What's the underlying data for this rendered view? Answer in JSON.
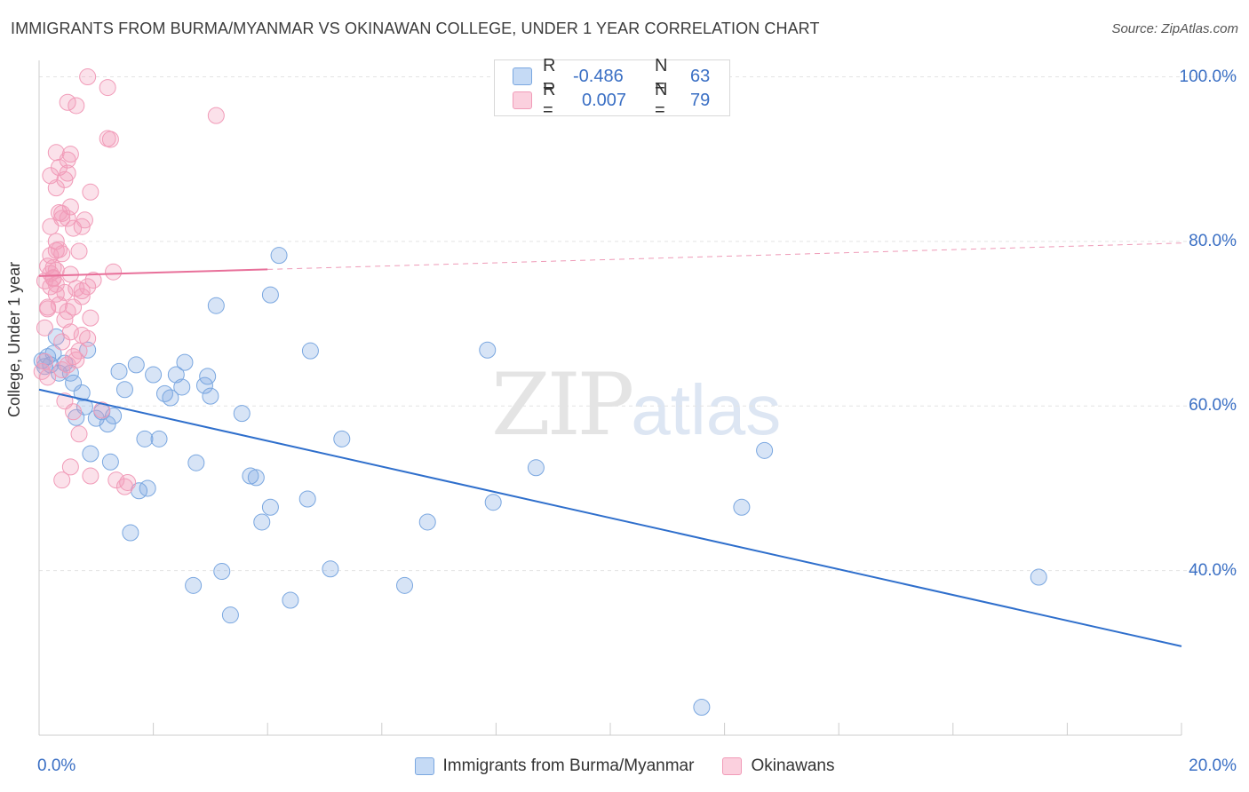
{
  "title": "IMMIGRANTS FROM BURMA/MYANMAR VS OKINAWAN COLLEGE, UNDER 1 YEAR CORRELATION CHART",
  "source": "Source: ZipAtlas.com",
  "watermark": {
    "zip": "ZIP",
    "atlas": "atlas"
  },
  "legend_top": {
    "rows": [
      {
        "r_label": "R =",
        "r_value": "-0.486",
        "n_label": "N =",
        "n_value": "63"
      },
      {
        "r_label": "R =",
        "r_value": "0.007",
        "n_label": "N =",
        "n_value": "79"
      }
    ]
  },
  "colors": {
    "blue": "#7aa7e0",
    "blue_line": "#2f6fcc",
    "pink": "#f19bb8",
    "pink_line": "#e8709a",
    "axis_text": "#3a6fc4",
    "grid": "#e3e3e3"
  },
  "chart_data": {
    "type": "scatter",
    "title": "IMMIGRANTS FROM BURMA/MYANMAR VS OKINAWAN COLLEGE, UNDER 1 YEAR CORRELATION CHART",
    "xlabel": "",
    "ylabel": "College, Under 1 year",
    "xlim": [
      0,
      20
    ],
    "ylim": [
      20,
      102
    ],
    "x_tick_labels": [
      "0.0%",
      "20.0%"
    ],
    "y_ticks": [
      40,
      60,
      80,
      100
    ],
    "y_tick_labels": [
      "40.0%",
      "60.0%",
      "80.0%",
      "100.0%"
    ],
    "grid": true,
    "legend_position": "bottom-center",
    "series": [
      {
        "name": "Immigrants from Burma/Myanmar",
        "R": -0.486,
        "N": 63,
        "trend": {
          "x": [
            0,
            20
          ],
          "y": [
            62.0,
            30.8
          ]
        },
        "points": [
          [
            0.05,
            65.5
          ],
          [
            0.15,
            66.0
          ],
          [
            0.2,
            65.0
          ],
          [
            0.25,
            66.4
          ],
          [
            0.3,
            68.4
          ],
          [
            0.35,
            64.0
          ],
          [
            0.45,
            65.2
          ],
          [
            0.55,
            64.0
          ],
          [
            0.6,
            62.8
          ],
          [
            0.65,
            58.6
          ],
          [
            0.75,
            61.6
          ],
          [
            0.8,
            59.9
          ],
          [
            0.85,
            66.8
          ],
          [
            0.9,
            54.2
          ],
          [
            1.0,
            58.5
          ],
          [
            1.1,
            59.3
          ],
          [
            1.2,
            57.8
          ],
          [
            1.3,
            58.8
          ],
          [
            1.25,
            53.2
          ],
          [
            1.4,
            64.2
          ],
          [
            1.5,
            62.0
          ],
          [
            1.6,
            44.6
          ],
          [
            1.7,
            65.0
          ],
          [
            1.75,
            49.7
          ],
          [
            1.85,
            56.0
          ],
          [
            1.9,
            50.0
          ],
          [
            2.0,
            63.8
          ],
          [
            2.1,
            56.0
          ],
          [
            2.2,
            61.5
          ],
          [
            2.3,
            61.0
          ],
          [
            2.4,
            63.8
          ],
          [
            2.5,
            62.3
          ],
          [
            2.55,
            65.3
          ],
          [
            2.7,
            38.2
          ],
          [
            2.75,
            53.1
          ],
          [
            2.9,
            62.5
          ],
          [
            2.95,
            63.6
          ],
          [
            3.0,
            61.2
          ],
          [
            3.1,
            72.2
          ],
          [
            3.2,
            39.9
          ],
          [
            3.35,
            34.6
          ],
          [
            3.7,
            51.5
          ],
          [
            3.8,
            51.3
          ],
          [
            3.9,
            45.9
          ],
          [
            4.05,
            47.7
          ],
          [
            4.2,
            78.3
          ],
          [
            4.4,
            36.4
          ],
          [
            4.7,
            48.7
          ],
          [
            4.75,
            66.7
          ],
          [
            3.55,
            59.1
          ],
          [
            5.1,
            40.2
          ],
          [
            5.3,
            56.0
          ],
          [
            4.05,
            73.5
          ],
          [
            6.4,
            38.2
          ],
          [
            6.8,
            45.9
          ],
          [
            7.85,
            66.8
          ],
          [
            7.95,
            48.3
          ],
          [
            8.7,
            52.5
          ],
          [
            12.3,
            47.7
          ],
          [
            12.7,
            54.6
          ],
          [
            17.5,
            39.2
          ],
          [
            11.6,
            23.4
          ],
          [
            0.1,
            64.8
          ]
        ]
      },
      {
        "name": "Okinawans",
        "R": 0.007,
        "N": 79,
        "trend": {
          "x": [
            0,
            20
          ],
          "y": [
            75.8,
            79.8
          ],
          "solid_until_x": 4.0
        },
        "points": [
          [
            0.05,
            64.2
          ],
          [
            0.1,
            69.5
          ],
          [
            0.15,
            71.8
          ],
          [
            0.2,
            74.5
          ],
          [
            0.1,
            75.2
          ],
          [
            0.15,
            77.0
          ],
          [
            0.2,
            78.3
          ],
          [
            0.25,
            75.5
          ],
          [
            0.3,
            76.5
          ],
          [
            0.3,
            80.0
          ],
          [
            0.2,
            81.8
          ],
          [
            0.35,
            83.5
          ],
          [
            0.4,
            82.8
          ],
          [
            0.3,
            86.5
          ],
          [
            0.2,
            88.0
          ],
          [
            0.35,
            89.0
          ],
          [
            0.45,
            87.5
          ],
          [
            0.5,
            88.3
          ],
          [
            0.3,
            90.8
          ],
          [
            0.5,
            89.9
          ],
          [
            0.55,
            90.6
          ],
          [
            0.5,
            96.9
          ],
          [
            0.65,
            96.5
          ],
          [
            0.85,
            100.0
          ],
          [
            1.2,
            98.7
          ],
          [
            1.2,
            92.5
          ],
          [
            1.25,
            92.4
          ],
          [
            3.1,
            95.3
          ],
          [
            0.9,
            86.0
          ],
          [
            0.8,
            82.6
          ],
          [
            0.75,
            81.8
          ],
          [
            0.6,
            81.6
          ],
          [
            0.55,
            84.2
          ],
          [
            0.5,
            82.8
          ],
          [
            0.4,
            83.4
          ],
          [
            0.7,
            78.8
          ],
          [
            0.55,
            76.0
          ],
          [
            0.65,
            74.3
          ],
          [
            0.75,
            74.0
          ],
          [
            0.75,
            73.3
          ],
          [
            0.85,
            74.5
          ],
          [
            0.95,
            75.3
          ],
          [
            1.3,
            76.3
          ],
          [
            0.6,
            72.0
          ],
          [
            0.35,
            72.3
          ],
          [
            0.3,
            74.8
          ],
          [
            0.45,
            70.5
          ],
          [
            0.55,
            69.0
          ],
          [
            0.75,
            68.6
          ],
          [
            0.9,
            70.7
          ],
          [
            0.85,
            68.2
          ],
          [
            0.7,
            66.7
          ],
          [
            0.6,
            66.0
          ],
          [
            0.4,
            64.4
          ],
          [
            0.5,
            65.0
          ],
          [
            0.65,
            65.6
          ],
          [
            0.45,
            60.6
          ],
          [
            0.6,
            59.3
          ],
          [
            0.7,
            56.6
          ],
          [
            0.55,
            52.6
          ],
          [
            0.4,
            51.0
          ],
          [
            0.9,
            51.5
          ],
          [
            1.35,
            51.0
          ],
          [
            1.5,
            50.2
          ],
          [
            1.55,
            50.7
          ],
          [
            1.1,
            59.5
          ],
          [
            0.15,
            72.0
          ],
          [
            0.2,
            76.1
          ],
          [
            0.25,
            75.6
          ],
          [
            0.3,
            73.6
          ],
          [
            0.45,
            73.8
          ],
          [
            0.5,
            71.5
          ],
          [
            0.35,
            79.0
          ],
          [
            0.4,
            78.5
          ],
          [
            0.25,
            76.8
          ],
          [
            0.1,
            65.4
          ],
          [
            0.15,
            63.5
          ],
          [
            0.4,
            67.8
          ],
          [
            0.3,
            78.9
          ]
        ]
      }
    ]
  }
}
